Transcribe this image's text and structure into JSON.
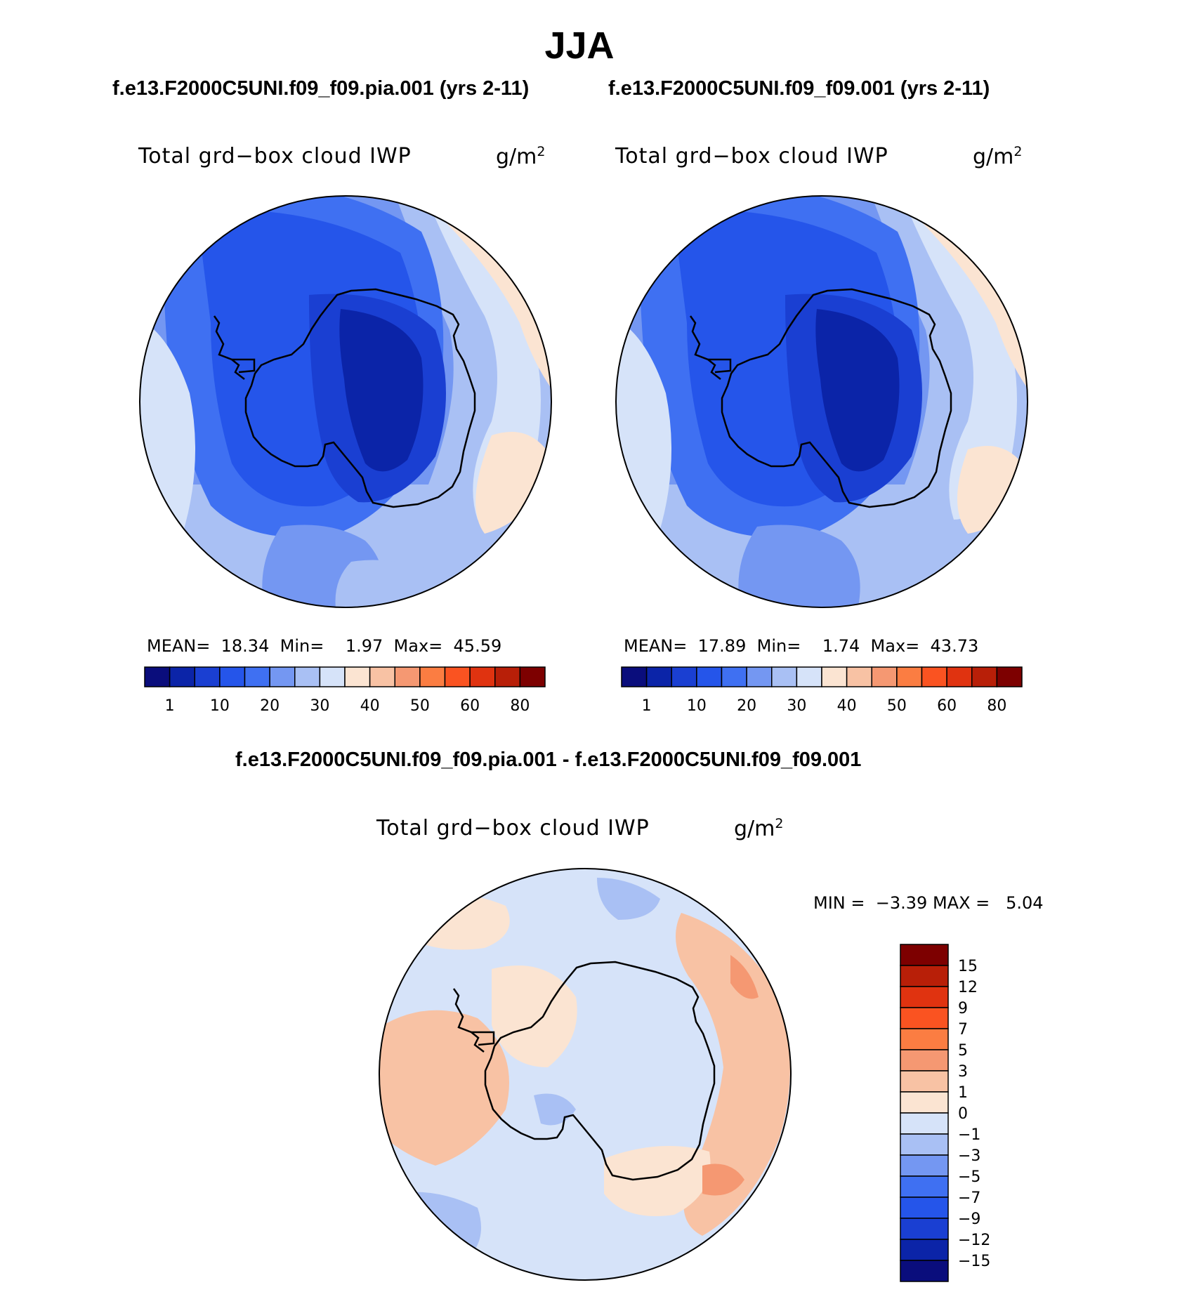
{
  "title": "JJA",
  "subtitles": {
    "left": "f.e13.F2000C5UNI.f09_f09.pia.001 (yrs 2-11)",
    "right": "f.e13.F2000C5UNI.f09_f09.001 (yrs 2-11)",
    "diff": "f.e13.F2000C5UNI.f09_f09.pia.001 - f.e13.F2000C5UNI.f09_f09.001"
  },
  "panels": {
    "left": {
      "variable": "Total grd−box cloud IWP",
      "units_base": "g/m",
      "units_exp": "2",
      "mean_label": "MEAN=",
      "mean": "18.34",
      "min_label": "Min=",
      "min": "1.97",
      "max_label": "Max=",
      "max": "45.59"
    },
    "right": {
      "variable": "Total grd−box cloud IWP",
      "units_base": "g/m",
      "units_exp": "2",
      "mean_label": "MEAN=",
      "mean": "17.89",
      "min_label": "Min=",
      "min": "1.74",
      "max_label": "Max=",
      "max": "43.73"
    },
    "diff": {
      "variable": "Total grd−box cloud IWP",
      "units_base": "g/m",
      "units_exp": "2",
      "min_label": "MIN =",
      "min": "−3.39",
      "max_label": "MAX =",
      "max": "5.04"
    }
  },
  "colors": {
    "abs_scale": [
      "#0a0d7c",
      "#0b24a8",
      "#1a3fd2",
      "#2555ea",
      "#3f70f2",
      "#7497f2",
      "#a9c0f4",
      "#d6e3f9",
      "#fbe4d2",
      "#f8c2a4",
      "#f59872",
      "#fb7d42",
      "#fa5321",
      "#e03310",
      "#b81f08",
      "#7d0000"
    ],
    "diff_scale": [
      "#0a0d7c",
      "#0b24a8",
      "#1a3fd2",
      "#2555ea",
      "#3f70f2",
      "#7497f2",
      "#a9c0f4",
      "#d6e3f9",
      "#fbe4d2",
      "#f8c2a4",
      "#f59872",
      "#fb7d42",
      "#fa5321",
      "#e03310",
      "#b81f08",
      "#7d0000"
    ],
    "coast": "#000000"
  },
  "chart_data": [
    {
      "type": "heatmap",
      "title": "f.e13.F2000C5UNI.f09_f09.pia.001 (yrs 2-11)",
      "projection": "south-polar-stereographic",
      "variable": "Total grd−box cloud IWP",
      "units": "g/m2",
      "colorbar_ticks": [
        "1",
        "10",
        "20",
        "30",
        "40",
        "50",
        "60",
        "80"
      ],
      "stats": {
        "mean": 18.34,
        "min": 1.97,
        "max": 45.59
      }
    },
    {
      "type": "heatmap",
      "title": "f.e13.F2000C5UNI.f09_f09.001 (yrs 2-11)",
      "projection": "south-polar-stereographic",
      "variable": "Total grd−box cloud IWP",
      "units": "g/m2",
      "colorbar_ticks": [
        "1",
        "10",
        "20",
        "30",
        "40",
        "50",
        "60",
        "80"
      ],
      "stats": {
        "mean": 17.89,
        "min": 1.74,
        "max": 43.73
      }
    },
    {
      "type": "heatmap",
      "title": "f.e13.F2000C5UNI.f09_f09.pia.001 - f.e13.F2000C5UNI.f09_f09.001",
      "projection": "south-polar-stereographic",
      "variable": "Total grd−box cloud IWP",
      "units": "g/m2",
      "colorbar_ticks": [
        "15",
        "12",
        "9",
        "7",
        "5",
        "3",
        "1",
        "0",
        "−1",
        "−3",
        "−5",
        "−7",
        "−9",
        "−12",
        "−15"
      ],
      "stats": {
        "min": -3.39,
        "max": 5.04
      }
    }
  ]
}
